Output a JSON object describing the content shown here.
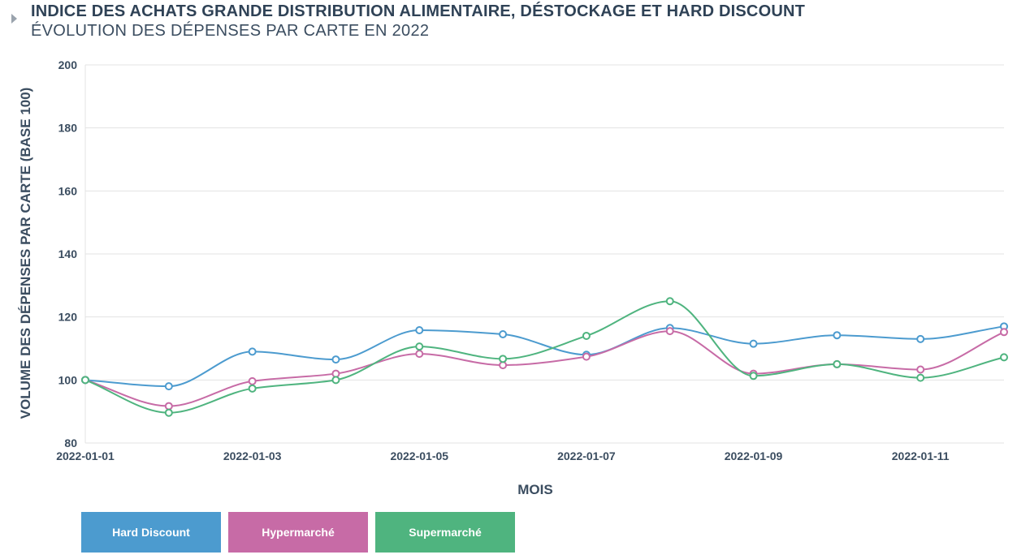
{
  "header": {
    "title": "INDICE DES ACHATS GRANDE DISTRIBUTION ALIMENTAIRE, DÉSTOCKAGE ET HARD DISCOUNT",
    "subtitle": "ÉVOLUTION DES DÉPENSES PAR CARTE EN 2022"
  },
  "chart_data": {
    "type": "line",
    "xlabel": "MOIS",
    "ylabel": "VOLUME DES DÉPENSES PAR CARTE (BASE 100)",
    "ylim": [
      80,
      200
    ],
    "y_ticks": [
      "80",
      "100",
      "120",
      "140",
      "160",
      "180",
      "200"
    ],
    "x": [
      "2022-01-01",
      "2022-01-02",
      "2022-01-03",
      "2022-01-04",
      "2022-01-05",
      "2022-01-06",
      "2022-01-07",
      "2022-01-08",
      "2022-01-09",
      "2022-01-10",
      "2022-01-11",
      "2022-01-12"
    ],
    "x_tick_labels": [
      "2022-01-01",
      "2022-01-03",
      "2022-01-05",
      "2022-01-07",
      "2022-01-09",
      "2022-01-11"
    ],
    "grid": true,
    "legend_position": "bottom-left",
    "series": [
      {
        "name": "Hard Discount",
        "color": "#4c9bcf",
        "values": [
          100,
          98,
          109,
          106.5,
          115.8,
          114.5,
          108,
          116.5,
          111.5,
          114.2,
          113,
          117
        ]
      },
      {
        "name": "Hypermarché",
        "color": "#c76ba6",
        "values": [
          100,
          91.7,
          99.6,
          102,
          108.3,
          104.7,
          107.4,
          115.5,
          102,
          105,
          103.3,
          115.2
        ]
      },
      {
        "name": "Supermarché",
        "color": "#4fb47f",
        "values": [
          100,
          89.6,
          97.3,
          100,
          110.6,
          106.7,
          114,
          125,
          101.3,
          105,
          100.7,
          107.2
        ]
      }
    ]
  }
}
